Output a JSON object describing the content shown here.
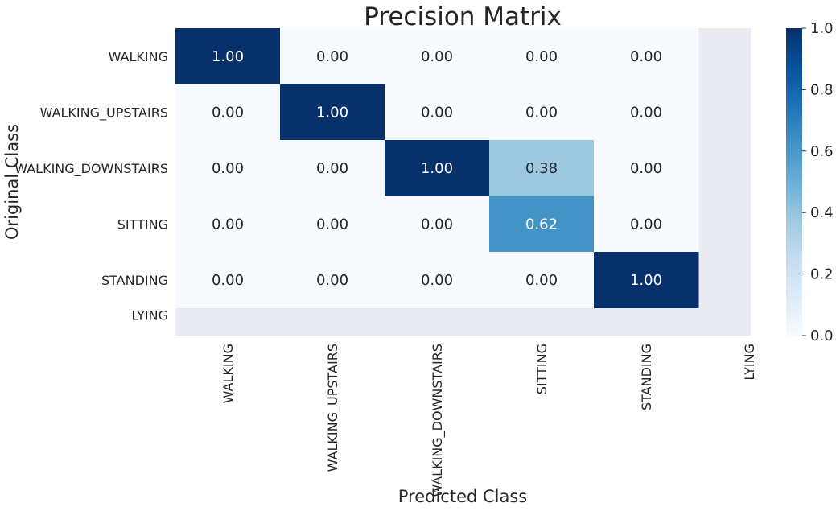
{
  "chart_data": {
    "type": "heatmap",
    "title": "Precision Matrix",
    "xlabel": "Predicted Class",
    "ylabel": "Original Class",
    "x_categories": [
      "WALKING",
      "WALKING_UPSTAIRS",
      "WALKING_DOWNSTAIRS",
      "SITTING",
      "STANDING",
      "LYING"
    ],
    "y_categories": [
      "WALKING",
      "WALKING_UPSTAIRS",
      "WALKING_DOWNSTAIRS",
      "SITTING",
      "STANDING",
      "LYING"
    ],
    "values": [
      [
        1.0,
        0.0,
        0.0,
        0.0,
        0.0,
        null
      ],
      [
        0.0,
        1.0,
        0.0,
        0.0,
        0.0,
        null
      ],
      [
        0.0,
        0.0,
        1.0,
        0.38,
        0.0,
        null
      ],
      [
        0.0,
        0.0,
        0.0,
        0.62,
        0.0,
        null
      ],
      [
        0.0,
        0.0,
        0.0,
        0.0,
        1.0,
        null
      ],
      [
        null,
        null,
        null,
        null,
        null,
        null
      ]
    ],
    "annotations": [
      [
        "1.00",
        "0.00",
        "0.00",
        "0.00",
        "0.00",
        ""
      ],
      [
        "0.00",
        "1.00",
        "0.00",
        "0.00",
        "0.00",
        ""
      ],
      [
        "0.00",
        "0.00",
        "1.00",
        "0.38",
        "0.00",
        ""
      ],
      [
        "0.00",
        "0.00",
        "0.00",
        "0.62",
        "0.00",
        ""
      ],
      [
        "0.00",
        "0.00",
        "0.00",
        "0.00",
        "1.00",
        ""
      ],
      [
        "",
        "",
        "",
        "",
        "",
        ""
      ]
    ],
    "colorbar": {
      "colormap": "Blues",
      "range": [
        0.0,
        1.0
      ],
      "ticks": [
        0.0,
        0.2,
        0.4,
        0.6,
        0.8,
        1.0
      ],
      "tick_labels": [
        "0.0",
        "0.2",
        "0.4",
        "0.6",
        "0.8",
        "1.0"
      ]
    },
    "missing_cell_color": "#eaeaf2",
    "text_dark_color": "#262626",
    "text_light_color": "#ffffff"
  }
}
